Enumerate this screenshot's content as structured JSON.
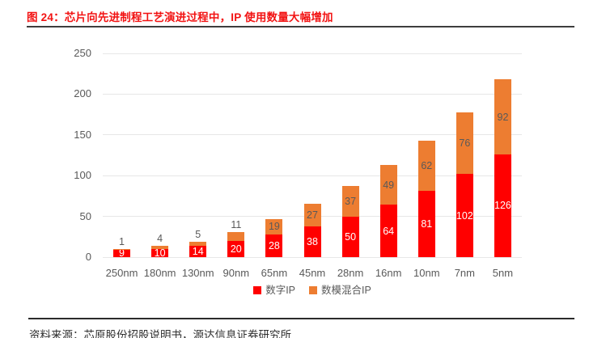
{
  "title": "图 24：芯片向先进制程工艺演进过程中，IP 使用数量大幅增加",
  "source": "资料来源：芯原股份招股说明书，源达信息证券研究所",
  "colors": {
    "title_red": "#f21212",
    "digital_ip_red": "#ff0000",
    "mixed_ip_orange": "#ed7d31",
    "gridline": "#e7e7e7",
    "axis_text": "#595959",
    "rule_dark": "#3d3d3d"
  },
  "chart_data": {
    "type": "bar",
    "stacked": true,
    "title": "图 24：芯片向先进制程工艺演进过程中，IP 使用数量大幅增加",
    "categories": [
      "250nm",
      "180nm",
      "130nm",
      "90nm",
      "65nm",
      "45nm",
      "28nm",
      "16nm",
      "10nm",
      "7nm",
      "5nm"
    ],
    "series": [
      {
        "name": "数字IP",
        "color": "#ff0000",
        "label_color": "#ffffff",
        "values": [
          9,
          10,
          14,
          20,
          28,
          38,
          50,
          64,
          81,
          102,
          126
        ]
      },
      {
        "name": "数模混合IP",
        "color": "#ed7d31",
        "label_color": "#595959",
        "values": [
          1,
          4,
          5,
          11,
          19,
          27,
          37,
          49,
          62,
          76,
          92
        ]
      }
    ],
    "xlabel": "",
    "ylabel": "",
    "ylim": [
      0,
      250
    ],
    "yticks": [
      0,
      50,
      100,
      150,
      200,
      250
    ],
    "grid": true,
    "legend_position": "bottom",
    "data_labels": true
  }
}
